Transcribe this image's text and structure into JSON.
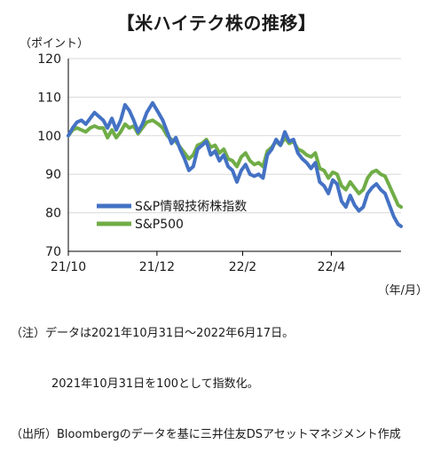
{
  "title": "【米ハイテク株の推移】",
  "y_unit": "（ポイント）",
  "x_unit": "（年/月）",
  "notes": {
    "line1": "（注）データは2021年10月31日～2022年6月17日。",
    "line2": "2021年10月31日を100として指数化。",
    "line3": "（出所）Bloombergのデータを基に三井住友DSアセットマネジメント作成"
  },
  "colors": {
    "tech": "#4472c4",
    "sp500": "#70ad47",
    "axis": "#000000",
    "grid": "#d9d9d9"
  },
  "chart_data": {
    "type": "line",
    "title": "【米ハイテク株の推移】",
    "ylabel": "（ポイント）",
    "xlabel": "（年/月）",
    "ylim": [
      70,
      120
    ],
    "yticks": [
      70,
      80,
      90,
      100,
      110,
      120
    ],
    "xticks": [
      {
        "date": "2021-10-31",
        "label": "21/10"
      },
      {
        "date": "2021-12-31",
        "label": "21/12"
      },
      {
        "date": "2022-02-28",
        "label": "22/2"
      },
      {
        "date": "2022-04-30",
        "label": "22/4"
      }
    ],
    "xlim": [
      "2021-10-31",
      "2022-06-17"
    ],
    "grid": "horizontal",
    "legend_position": "lower-left",
    "series": [
      {
        "name": "S&P情報技術株指数",
        "color": "#4472c4",
        "points": [
          [
            "2021-10-31",
            100.0
          ],
          [
            "2021-11-03",
            102.0
          ],
          [
            "2021-11-06",
            103.5
          ],
          [
            "2021-11-09",
            104.0
          ],
          [
            "2021-11-12",
            103.0
          ],
          [
            "2021-11-15",
            104.5
          ],
          [
            "2021-11-18",
            106.0
          ],
          [
            "2021-11-21",
            105.0
          ],
          [
            "2021-11-24",
            104.0
          ],
          [
            "2021-11-27",
            102.0
          ],
          [
            "2021-11-30",
            104.5
          ],
          [
            "2021-12-03",
            101.5
          ],
          [
            "2021-12-06",
            104.0
          ],
          [
            "2021-12-09",
            108.0
          ],
          [
            "2021-12-12",
            106.5
          ],
          [
            "2021-12-15",
            104.0
          ],
          [
            "2021-12-18",
            101.0
          ],
          [
            "2021-12-21",
            103.0
          ],
          [
            "2021-12-24",
            106.0
          ],
          [
            "2021-12-28",
            108.5
          ],
          [
            "2022-01-01",
            106.0
          ],
          [
            "2022-01-04",
            104.0
          ],
          [
            "2022-01-07",
            101.0
          ],
          [
            "2022-01-10",
            98.0
          ],
          [
            "2022-01-13",
            99.5
          ],
          [
            "2022-01-16",
            96.5
          ],
          [
            "2022-01-19",
            94.0
          ],
          [
            "2022-01-22",
            91.0
          ],
          [
            "2022-01-25",
            92.0
          ],
          [
            "2022-01-28",
            96.5
          ],
          [
            "2022-01-31",
            97.5
          ],
          [
            "2022-02-03",
            98.5
          ],
          [
            "2022-02-06",
            95.0
          ],
          [
            "2022-02-09",
            96.0
          ],
          [
            "2022-02-12",
            93.5
          ],
          [
            "2022-02-15",
            95.0
          ],
          [
            "2022-02-18",
            92.0
          ],
          [
            "2022-02-21",
            91.0
          ],
          [
            "2022-02-24",
            88.0
          ],
          [
            "2022-02-27",
            91.0
          ],
          [
            "2022-03-02",
            92.5
          ],
          [
            "2022-03-05",
            90.0
          ],
          [
            "2022-03-08",
            89.5
          ],
          [
            "2022-03-11",
            90.0
          ],
          [
            "2022-03-14",
            89.0
          ],
          [
            "2022-03-17",
            95.0
          ],
          [
            "2022-03-20",
            96.5
          ],
          [
            "2022-03-23",
            99.0
          ],
          [
            "2022-03-26",
            97.5
          ],
          [
            "2022-03-29",
            101.0
          ],
          [
            "2022-04-01",
            98.5
          ],
          [
            "2022-04-04",
            99.0
          ],
          [
            "2022-04-07",
            95.5
          ],
          [
            "2022-04-10",
            94.0
          ],
          [
            "2022-04-13",
            93.0
          ],
          [
            "2022-04-16",
            91.5
          ],
          [
            "2022-04-19",
            93.0
          ],
          [
            "2022-04-22",
            88.0
          ],
          [
            "2022-04-25",
            87.0
          ],
          [
            "2022-04-28",
            85.0
          ],
          [
            "2022-05-01",
            88.5
          ],
          [
            "2022-05-04",
            87.5
          ],
          [
            "2022-05-07",
            83.0
          ],
          [
            "2022-05-10",
            81.5
          ],
          [
            "2022-05-13",
            84.5
          ],
          [
            "2022-05-16",
            82.0
          ],
          [
            "2022-05-19",
            80.5
          ],
          [
            "2022-05-22",
            81.5
          ],
          [
            "2022-05-25",
            85.0
          ],
          [
            "2022-05-28",
            86.5
          ],
          [
            "2022-05-31",
            87.5
          ],
          [
            "2022-06-03",
            86.0
          ],
          [
            "2022-06-06",
            85.0
          ],
          [
            "2022-06-09",
            82.0
          ],
          [
            "2022-06-12",
            79.0
          ],
          [
            "2022-06-15",
            77.0
          ],
          [
            "2022-06-17",
            76.5
          ]
        ]
      },
      {
        "name": "S&P500",
        "color": "#70ad47",
        "points": [
          [
            "2021-10-31",
            100.0
          ],
          [
            "2021-11-03",
            101.5
          ],
          [
            "2021-11-06",
            102.0
          ],
          [
            "2021-11-09",
            101.5
          ],
          [
            "2021-11-12",
            101.0
          ],
          [
            "2021-11-15",
            102.0
          ],
          [
            "2021-11-18",
            102.5
          ],
          [
            "2021-11-21",
            102.0
          ],
          [
            "2021-11-24",
            102.0
          ],
          [
            "2021-11-27",
            99.5
          ],
          [
            "2021-11-30",
            101.5
          ],
          [
            "2021-12-03",
            99.5
          ],
          [
            "2021-12-06",
            101.0
          ],
          [
            "2021-12-09",
            103.0
          ],
          [
            "2021-12-12",
            102.0
          ],
          [
            "2021-12-15",
            102.5
          ],
          [
            "2021-12-18",
            100.5
          ],
          [
            "2021-12-21",
            102.0
          ],
          [
            "2021-12-24",
            103.5
          ],
          [
            "2021-12-28",
            104.0
          ],
          [
            "2022-01-01",
            103.0
          ],
          [
            "2022-01-04",
            102.0
          ],
          [
            "2022-01-07",
            100.0
          ],
          [
            "2022-01-10",
            99.0
          ],
          [
            "2022-01-13",
            98.5
          ],
          [
            "2022-01-16",
            97.0
          ],
          [
            "2022-01-19",
            95.5
          ],
          [
            "2022-01-22",
            94.0
          ],
          [
            "2022-01-25",
            95.0
          ],
          [
            "2022-01-28",
            97.5
          ],
          [
            "2022-01-31",
            98.0
          ],
          [
            "2022-02-03",
            99.0
          ],
          [
            "2022-02-06",
            97.0
          ],
          [
            "2022-02-09",
            97.5
          ],
          [
            "2022-02-12",
            95.5
          ],
          [
            "2022-02-15",
            96.5
          ],
          [
            "2022-02-18",
            94.0
          ],
          [
            "2022-02-21",
            93.5
          ],
          [
            "2022-02-24",
            92.0
          ],
          [
            "2022-02-27",
            94.5
          ],
          [
            "2022-03-02",
            95.5
          ],
          [
            "2022-03-05",
            93.5
          ],
          [
            "2022-03-08",
            92.5
          ],
          [
            "2022-03-11",
            93.0
          ],
          [
            "2022-03-14",
            92.0
          ],
          [
            "2022-03-17",
            96.0
          ],
          [
            "2022-03-20",
            97.0
          ],
          [
            "2022-03-23",
            98.5
          ],
          [
            "2022-03-26",
            97.5
          ],
          [
            "2022-03-29",
            99.5
          ],
          [
            "2022-04-01",
            98.0
          ],
          [
            "2022-04-04",
            98.5
          ],
          [
            "2022-04-07",
            96.5
          ],
          [
            "2022-04-10",
            96.0
          ],
          [
            "2022-04-13",
            95.0
          ],
          [
            "2022-04-16",
            94.5
          ],
          [
            "2022-04-19",
            95.5
          ],
          [
            "2022-04-22",
            91.5
          ],
          [
            "2022-04-25",
            91.0
          ],
          [
            "2022-04-28",
            89.0
          ],
          [
            "2022-05-01",
            90.5
          ],
          [
            "2022-05-04",
            90.0
          ],
          [
            "2022-05-07",
            87.0
          ],
          [
            "2022-05-10",
            86.0
          ],
          [
            "2022-05-13",
            88.0
          ],
          [
            "2022-05-16",
            86.5
          ],
          [
            "2022-05-19",
            85.0
          ],
          [
            "2022-05-22",
            86.0
          ],
          [
            "2022-05-25",
            89.0
          ],
          [
            "2022-05-28",
            90.5
          ],
          [
            "2022-05-31",
            91.0
          ],
          [
            "2022-06-03",
            90.0
          ],
          [
            "2022-06-06",
            89.5
          ],
          [
            "2022-06-09",
            87.0
          ],
          [
            "2022-06-12",
            84.5
          ],
          [
            "2022-06-15",
            82.0
          ],
          [
            "2022-06-17",
            81.5
          ]
        ]
      }
    ]
  }
}
